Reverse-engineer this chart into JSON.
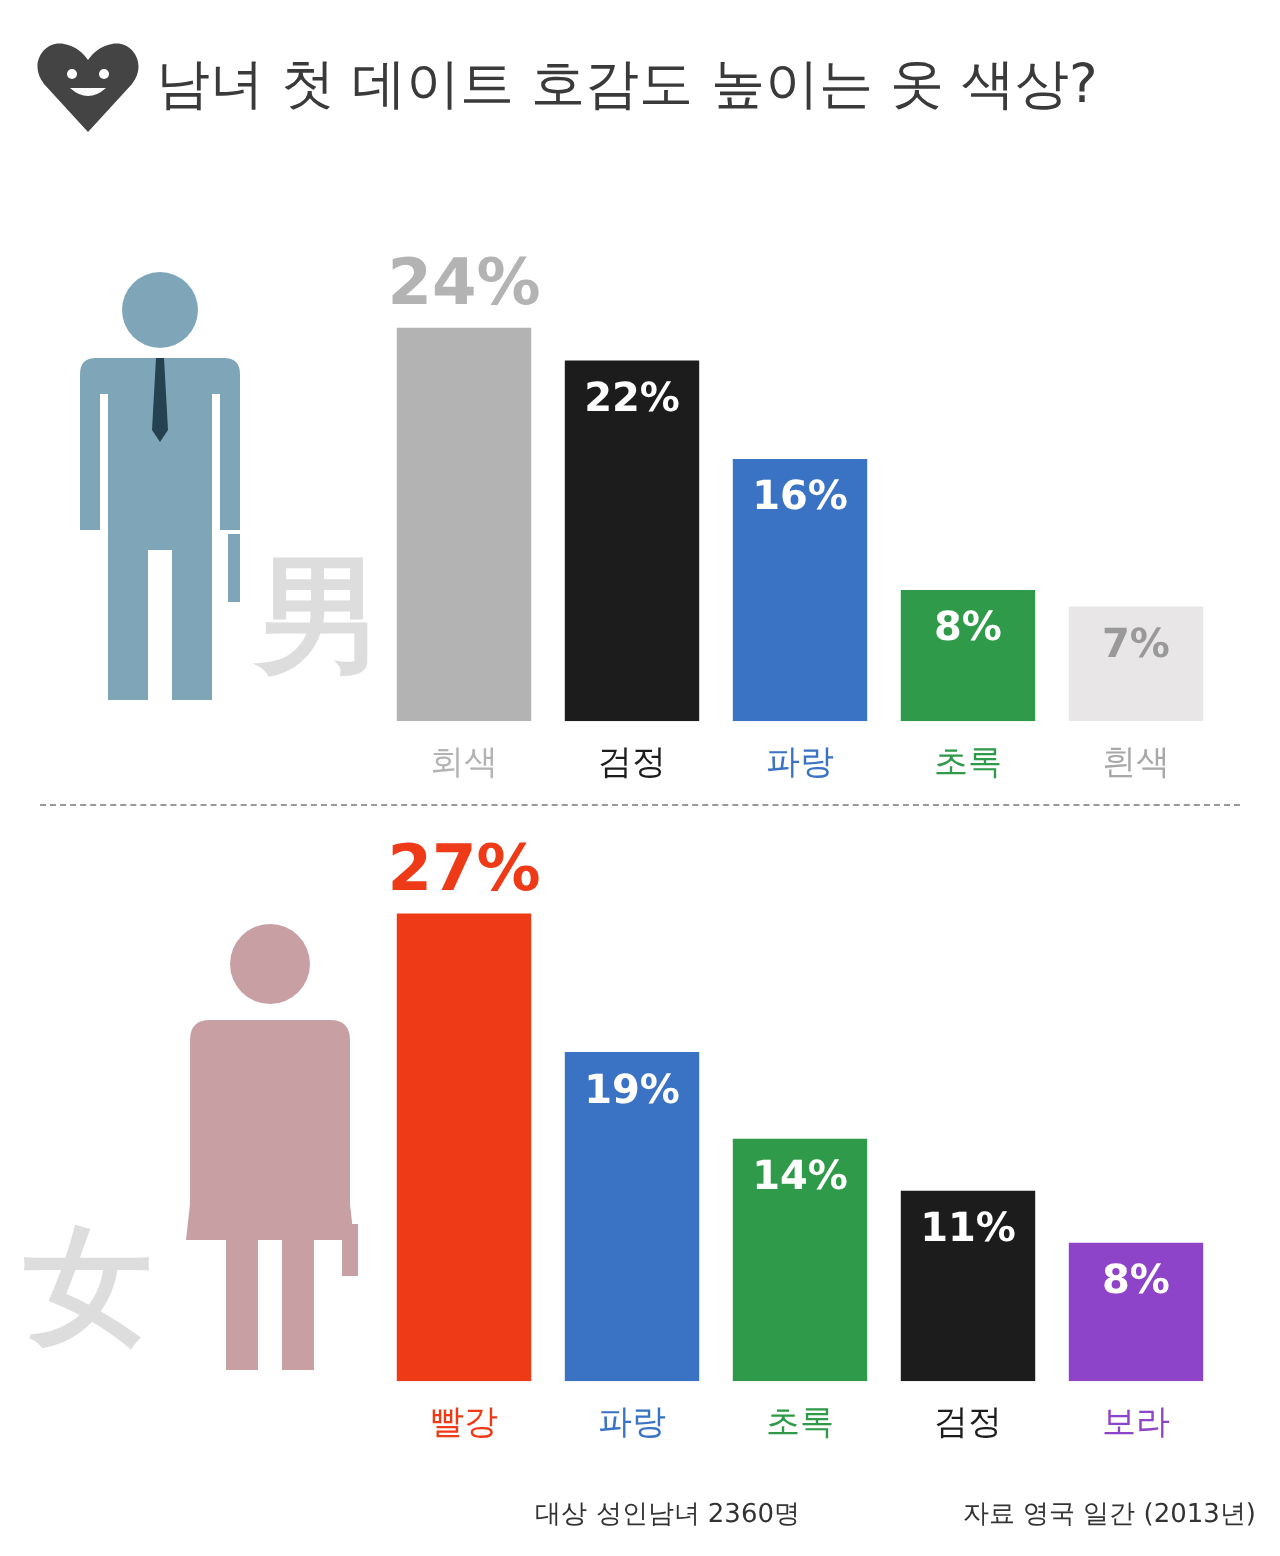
{
  "chart_data": [
    {
      "type": "bar",
      "title": "남녀 첫 데이트 호감도 높이는 옷 색상?",
      "categories": [
        "회색",
        "검정",
        "파랑",
        "초록",
        "흰색"
      ],
      "values": [
        24,
        22,
        16,
        8,
        7
      ],
      "value_labels": [
        "24%",
        "22%",
        "16%",
        "8%",
        "7%"
      ],
      "colors": [
        "#b3b3b3",
        "#1c1c1c",
        "#3a72c4",
        "#2f9a4a",
        "#e8e6e6"
      ],
      "annotations": [
        "男"
      ]
    },
    {
      "type": "bar",
      "categories": [
        "빨강",
        "파랑",
        "초록",
        "검정",
        "보라"
      ],
      "values": [
        27,
        19,
        14,
        11,
        8
      ],
      "value_labels": [
        "27%",
        "19%",
        "14%",
        "11%",
        "8%"
      ],
      "colors": [
        "#ef3a18",
        "#3a72c4",
        "#2f9a4a",
        "#1c1c1c",
        "#8e44c8"
      ],
      "annotations": [
        "女",
        "대상 성인남녀 2360명",
        "자료 영국 일간 (2013년)"
      ]
    }
  ]
}
